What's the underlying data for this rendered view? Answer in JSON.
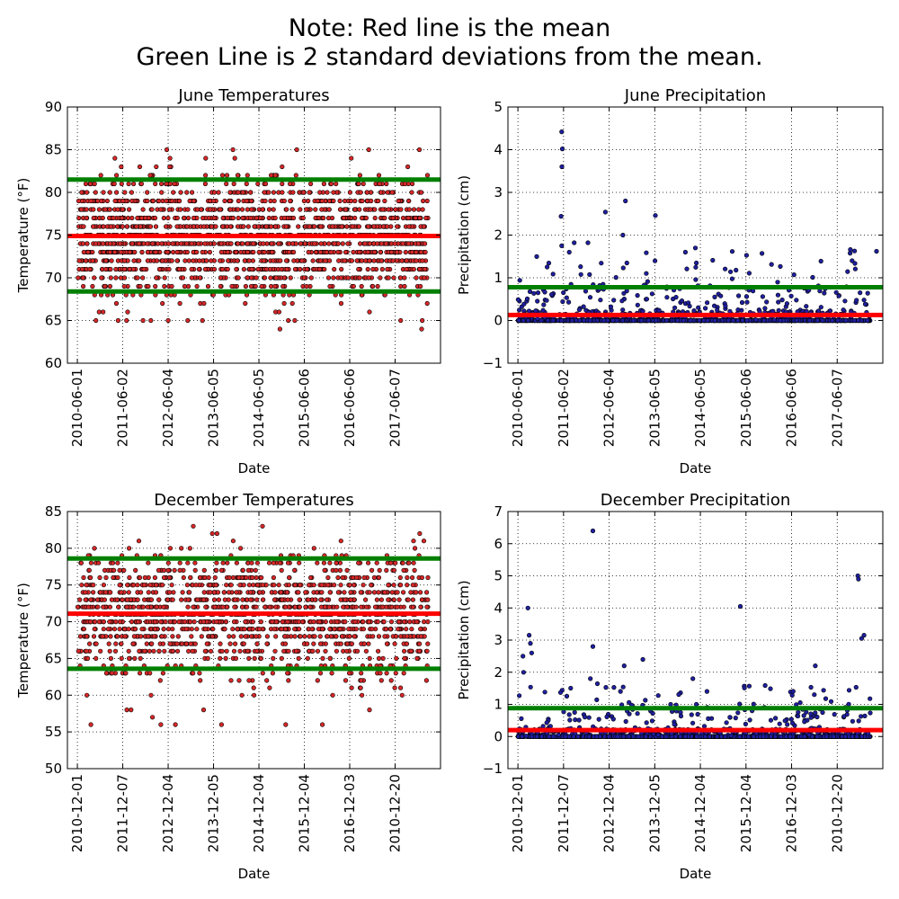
{
  "suptitle": {
    "line1": "Note: Red line is the mean",
    "line2": "Green Line is 2 standard deviations from the mean."
  },
  "chart_data": [
    {
      "type": "scatter",
      "id": "june-temps",
      "title": "June Temperatures",
      "xlabel": "Date",
      "ylabel": "Temperature ($^\\circ$F)",
      "ylabel_display": "Temperature (°F)",
      "ylim": [
        60,
        90
      ],
      "yticks": [
        60,
        65,
        70,
        75,
        80,
        85,
        90
      ],
      "ytick_labels": [
        "60",
        "65",
        "70",
        "75",
        "80",
        "85",
        "90"
      ],
      "xtick_labels": [
        "2010-06-01",
        "2011-06-02",
        "2012-06-04",
        "2013-06-05",
        "2014-06-05",
        "2015-06-06",
        "2016-06-06",
        "2017-06-07"
      ],
      "x_extent_days": [
        -80,
        2920
      ],
      "n_points": 1700,
      "value_levels": [
        64,
        65,
        66,
        67,
        68,
        69,
        70,
        71,
        72,
        73,
        74,
        75,
        76,
        77,
        78,
        79,
        80,
        81,
        82,
        83,
        84,
        85
      ],
      "level_weights": [
        0.3,
        0.5,
        0.6,
        1,
        2,
        3,
        5,
        7,
        9,
        10,
        11,
        11,
        10,
        9,
        7,
        6,
        4,
        2,
        1,
        0.5,
        0.4,
        0.3
      ],
      "series": [
        {
          "name": "",
          "marker_color": "#d62728",
          "edge_color": "#000000"
        }
      ],
      "reference_lines": {
        "mean": 74.9,
        "upper_2sd": 81.5,
        "lower_2sd": 68.4
      },
      "grid": true
    },
    {
      "type": "scatter",
      "id": "june-precip",
      "title": "June Precipitation",
      "xlabel": "Date",
      "ylabel": "Precipitation (cm)",
      "ylim": [
        -1,
        5
      ],
      "yticks": [
        -1,
        0,
        1,
        2,
        3,
        4,
        5
      ],
      "ytick_labels": [
        "−1",
        "0",
        "1",
        "2",
        "3",
        "4",
        "5"
      ],
      "xtick_labels": [
        "2010-06-01",
        "2011-06-02",
        "2012-06-04",
        "2013-06-05",
        "2014-06-05",
        "2015-06-06",
        "2016-06-06",
        "2017-06-07"
      ],
      "x_extent_days": [
        -80,
        2920
      ],
      "n_points": 1600,
      "notable_points": [
        [
          350,
          4.42
        ],
        [
          355,
          4.02
        ],
        [
          352,
          3.6
        ],
        [
          700,
          2.54
        ],
        [
          860,
          2.8
        ],
        [
          840,
          2.0
        ],
        [
          1100,
          2.46
        ],
        [
          345,
          2.44
        ],
        [
          350,
          1.75
        ],
        [
          1340,
          1.6
        ],
        [
          1420,
          1.7
        ],
        [
          2660,
          1.66
        ],
        [
          2870,
          1.62
        ],
        [
          560,
          1.82
        ],
        [
          450,
          1.82
        ]
      ],
      "series": [
        {
          "name": "",
          "marker_color": "#1f1f9e",
          "edge_color": "#000000"
        }
      ],
      "reference_lines": {
        "mean": 0.13,
        "upper_2sd": 0.78
      },
      "grid": true
    },
    {
      "type": "scatter",
      "id": "december-temps",
      "title": "December Temperatures",
      "xlabel": "Date",
      "ylabel": "Temperature ($^\\circ$F)",
      "ylabel_display": "Temperature (°F)",
      "ylim": [
        50,
        85
      ],
      "yticks": [
        50,
        55,
        60,
        65,
        70,
        75,
        80,
        85
      ],
      "ytick_labels": [
        "50",
        "55",
        "60",
        "65",
        "70",
        "75",
        "80",
        "85"
      ],
      "xtick_labels": [
        "2010-12-01",
        "2011-12-07",
        "2012-12-04",
        "2013-12-05",
        "2014-12-04",
        "2015-12-04",
        "2016-12-03",
        "2010-12-20"
      ],
      "x_extent_days": [
        -80,
        2920
      ],
      "n_points": 1500,
      "value_levels": [
        56,
        57,
        58,
        60,
        61,
        62,
        63,
        64,
        65,
        66,
        67,
        68,
        69,
        70,
        71,
        72,
        73,
        74,
        75,
        76,
        77,
        78,
        79,
        80,
        81,
        82,
        83
      ],
      "level_weights": [
        0.2,
        0.2,
        0.3,
        0.5,
        0.6,
        1,
        2,
        3,
        4,
        6,
        7,
        9,
        10,
        11,
        11,
        11,
        10,
        9,
        7,
        6,
        4,
        3,
        1.5,
        0.6,
        0.4,
        0.2,
        0.2
      ],
      "series": [
        {
          "name": "",
          "marker_color": "#d62728",
          "edge_color": "#000000"
        }
      ],
      "reference_lines": {
        "mean": 71.1,
        "upper_2sd": 78.6,
        "lower_2sd": 63.6
      },
      "grid": true
    },
    {
      "type": "scatter",
      "id": "december-precip",
      "title": "December Precipitation",
      "xlabel": "Date",
      "ylabel": "Precipitation (cm)",
      "ylim": [
        -1,
        7
      ],
      "yticks": [
        -1,
        0,
        1,
        2,
        3,
        4,
        5,
        6,
        7
      ],
      "ytick_labels": [
        "−1",
        "0",
        "1",
        "2",
        "3",
        "4",
        "5",
        "6",
        "7"
      ],
      "xtick_labels": [
        "2010-12-01",
        "2011-12-07",
        "2012-12-04",
        "2013-12-05",
        "2014-12-04",
        "2015-12-04",
        "2016-12-03",
        "2010-12-20"
      ],
      "x_extent_days": [
        -80,
        2920
      ],
      "n_points": 1600,
      "notable_points": [
        [
          600,
          6.4
        ],
        [
          2720,
          5.0
        ],
        [
          2725,
          4.9
        ],
        [
          1780,
          4.05
        ],
        [
          80,
          4.0
        ],
        [
          2770,
          3.15
        ],
        [
          2750,
          3.05
        ],
        [
          90,
          3.15
        ],
        [
          100,
          2.9
        ],
        [
          600,
          2.8
        ],
        [
          110,
          2.6
        ],
        [
          40,
          2.5
        ],
        [
          45,
          2.0
        ],
        [
          1000,
          2.4
        ],
        [
          850,
          2.2
        ],
        [
          2380,
          2.2
        ],
        [
          1400,
          1.8
        ],
        [
          580,
          1.8
        ]
      ],
      "series": [
        {
          "name": "",
          "marker_color": "#1f1f9e",
          "edge_color": "#000000"
        }
      ],
      "reference_lines": {
        "mean": 0.2,
        "upper_2sd": 0.88
      },
      "grid": true
    }
  ],
  "colors": {
    "mean_line": "#ff0000",
    "sd_line": "#008000",
    "grid": "#000000"
  }
}
